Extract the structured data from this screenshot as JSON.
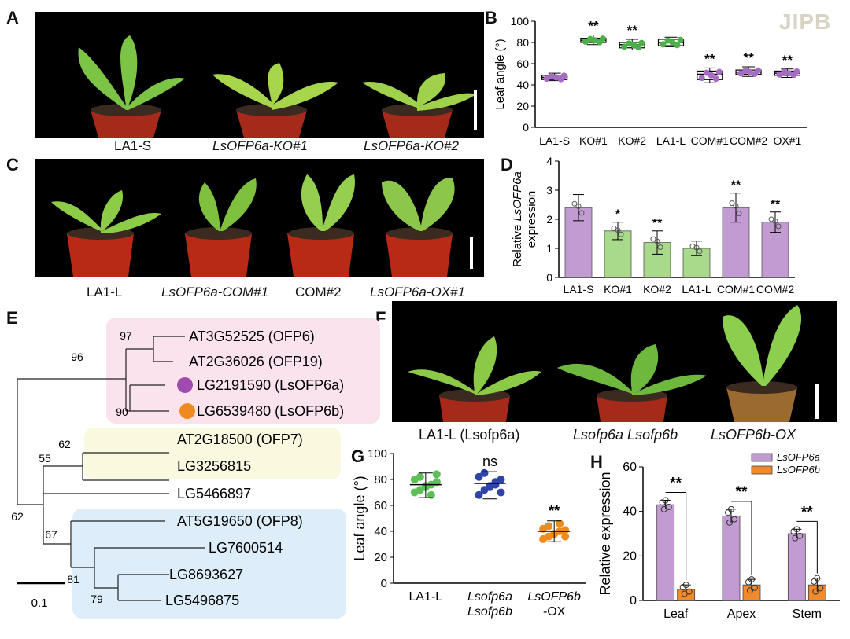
{
  "logo": "JIPB",
  "panels": {
    "A": {
      "label": "A",
      "captions": [
        "LA1-S",
        "LsOFP6a-KO#1",
        "LsOFP6a-KO#2"
      ]
    },
    "C": {
      "label": "C",
      "captions": [
        "LA1-L",
        "LsOFP6a-COM#1",
        "COM#2",
        "LsOFP6a-OX#1"
      ]
    },
    "F": {
      "label": "F",
      "captions": [
        "LA1-L (Lsofp6a)",
        "Lsofp6a Lsofp6b",
        "LsOFP6b-OX"
      ]
    },
    "B": {
      "label": "B"
    },
    "D": {
      "label": "D"
    },
    "E": {
      "label": "E"
    },
    "G": {
      "label": "G"
    },
    "H": {
      "label": "H"
    }
  },
  "chart_data": [
    {
      "panel": "B",
      "type": "box",
      "categories": [
        "LA1-S",
        "KO#1",
        "KO#2",
        "LA1-L",
        "COM#1",
        "COM#2",
        "OX#1"
      ],
      "medians": [
        47,
        82,
        78,
        80,
        50,
        52,
        51
      ],
      "q1": [
        45,
        80,
        75,
        77,
        45,
        50,
        49
      ],
      "q3": [
        49,
        84,
        80,
        83,
        53,
        54,
        53
      ],
      "whisker_low": [
        44,
        78,
        73,
        76,
        42,
        48,
        47
      ],
      "whisker_high": [
        51,
        87,
        83,
        85,
        56,
        57,
        55
      ],
      "significance": [
        "",
        "**",
        "**",
        "",
        "**",
        "**",
        "**"
      ],
      "colors": [
        "#a56cc1",
        "#4db04a",
        "#4db04a",
        "#4db04a",
        "#a56cc1",
        "#a56cc1",
        "#a56cc1"
      ],
      "ylabel": "Leaf angle (°)",
      "ylim": [
        0,
        100
      ],
      "yticks": [
        "0",
        "20",
        "40",
        "60",
        "80",
        "100"
      ]
    },
    {
      "panel": "D",
      "type": "bar",
      "categories": [
        "LA1-S",
        "KO#1",
        "KO#2",
        "LA1-L",
        "COM#1",
        "COM#2"
      ],
      "values": [
        2.4,
        1.6,
        1.2,
        1.0,
        2.4,
        1.9
      ],
      "errors": [
        0.45,
        0.3,
        0.4,
        0.25,
        0.5,
        0.35
      ],
      "significance": [
        "",
        "*",
        "**",
        "",
        "**",
        "**"
      ],
      "colors": [
        "#c39bd3",
        "#a9d98a",
        "#a9d98a",
        "#a9d98a",
        "#c39bd3",
        "#c39bd3"
      ],
      "ylabel_prefix": "Relative",
      "ylabel_italic": "LsOFP6a",
      "ylabel_suffix": "expression",
      "ylim": [
        0,
        4
      ],
      "yticks": [
        "0",
        "1",
        "2",
        "3",
        "4"
      ]
    },
    {
      "panel": "G",
      "type": "scatter",
      "categories": [
        "LA1-L",
        "Lsofp6a Lsofp6b",
        "LsOFP6b -OX"
      ],
      "tick_lines": [
        [
          "LA1-L"
        ],
        [
          "Lsofp6a",
          "Lsofp6b"
        ],
        [
          "LsOFP6b",
          "-OX"
        ]
      ],
      "means": [
        76,
        77,
        40
      ],
      "sd_low": [
        66,
        65,
        32
      ],
      "sd_high": [
        85,
        86,
        48
      ],
      "points": [
        [
          70,
          72,
          74,
          76,
          78,
          80,
          82,
          75,
          68,
          84
        ],
        [
          68,
          72,
          75,
          78,
          80,
          82,
          85,
          74,
          76,
          70
        ],
        [
          34,
          36,
          38,
          40,
          41,
          42,
          44,
          38,
          46,
          36
        ]
      ],
      "significance": [
        "",
        "ns",
        "**"
      ],
      "colors": [
        "#5cc056",
        "#2e44a6",
        "#ef8a1f"
      ],
      "ylabel": "Leaf angle (°)",
      "ylim": [
        0,
        100
      ],
      "yticks": [
        "0",
        "20",
        "40",
        "60",
        "80",
        "100"
      ]
    },
    {
      "panel": "H",
      "type": "bar",
      "categories": [
        "Leaf",
        "Apex",
        "Stem"
      ],
      "series": [
        {
          "name": "LsOFP6a",
          "values": [
            43,
            38,
            30
          ],
          "errors": [
            2,
            3,
            2
          ],
          "color": "#c39bd3"
        },
        {
          "name": "LsOFP6b",
          "values": [
            5,
            7,
            7
          ],
          "errors": [
            2,
            2.5,
            3
          ],
          "color": "#f08a2c"
        }
      ],
      "significance": [
        "**",
        "**",
        "**"
      ],
      "ylabel": "Relative expression",
      "ylim": [
        0,
        60
      ],
      "yticks": [
        "0",
        "20",
        "40",
        "60"
      ]
    },
    {
      "panel": "E",
      "type": "tree",
      "leaves": [
        "AT3G52525 (OFP6)",
        "AT2G36026 (OFP19)",
        "LG2191590 (LsOFP6a)",
        "LG6539480 (LsOFP6b)",
        "AT2G18500 (OFP7)",
        "LG3256815",
        "LG5466897",
        "AT5G19650 (OFP8)",
        "LG7600514",
        "LG8693627",
        "LG5496875"
      ],
      "bootstrap": [
        "97",
        "96",
        "90",
        "62",
        "55",
        "62",
        "67",
        "81",
        "79"
      ],
      "scale_label": "0.1",
      "marker_colors": [
        "#a14bb0",
        "#ef8a1f"
      ],
      "clade_colors": [
        "#fbe3ee",
        "#fbf8e0",
        "#ddeefa"
      ]
    }
  ]
}
